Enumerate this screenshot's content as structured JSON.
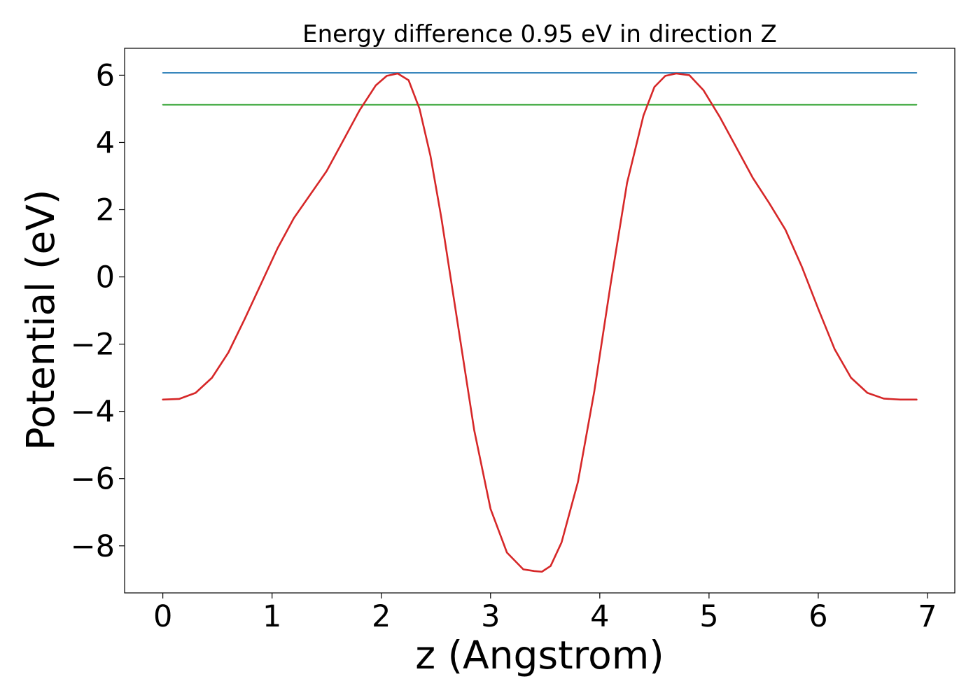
{
  "chart_data": {
    "type": "line",
    "title": "Energy difference 0.95 eV in direction Z",
    "xlabel": "z (Angstrom)",
    "ylabel": "Potential (eV)",
    "xlim": [
      -0.35,
      7.25
    ],
    "ylim": [
      -9.4,
      6.8
    ],
    "xticks": [
      0,
      1,
      2,
      3,
      4,
      5,
      6,
      7
    ],
    "xtick_labels": [
      "0",
      "1",
      "2",
      "3",
      "4",
      "5",
      "6",
      "7"
    ],
    "yticks": [
      6,
      4,
      2,
      0,
      -2,
      -4,
      -6,
      -8
    ],
    "ytick_labels": [
      "6",
      "4",
      "2",
      "0",
      "−2",
      "−4",
      "−6",
      "−8"
    ],
    "grid": false,
    "legend": "none",
    "series": [
      {
        "color": "#1f77b4",
        "x": [
          0,
          6.9
        ],
        "y": [
          6.07,
          6.07
        ]
      },
      {
        "color": "#2ca02c",
        "x": [
          0,
          6.9
        ],
        "y": [
          5.12,
          5.12
        ]
      },
      {
        "color": "#d62728",
        "x": [
          0,
          0.15,
          0.3,
          0.45,
          0.6,
          0.75,
          0.9,
          1.05,
          1.2,
          1.35,
          1.5,
          1.65,
          1.8,
          1.95,
          2.05,
          2.15,
          2.25,
          2.35,
          2.45,
          2.55,
          2.7,
          2.85,
          3.0,
          3.15,
          3.3,
          3.4,
          3.47,
          3.55,
          3.65,
          3.8,
          3.95,
          4.1,
          4.25,
          4.4,
          4.5,
          4.6,
          4.7,
          4.82,
          4.95,
          5.1,
          5.25,
          5.4,
          5.55,
          5.7,
          5.85,
          6.0,
          6.15,
          6.3,
          6.45,
          6.6,
          6.75,
          6.9
        ],
        "y": [
          -3.65,
          -3.63,
          -3.45,
          -3.0,
          -2.25,
          -1.25,
          -0.2,
          0.85,
          1.75,
          2.45,
          3.15,
          4.05,
          4.95,
          5.7,
          5.98,
          6.05,
          5.85,
          5.0,
          3.6,
          1.75,
          -1.4,
          -4.55,
          -6.9,
          -8.2,
          -8.7,
          -8.75,
          -8.77,
          -8.6,
          -7.9,
          -6.1,
          -3.4,
          -0.2,
          2.8,
          4.8,
          5.65,
          5.98,
          6.05,
          6.0,
          5.55,
          4.75,
          3.85,
          2.95,
          2.2,
          1.4,
          0.3,
          -0.95,
          -2.15,
          -3.0,
          -3.45,
          -3.62,
          -3.65,
          -3.65
        ]
      }
    ]
  }
}
